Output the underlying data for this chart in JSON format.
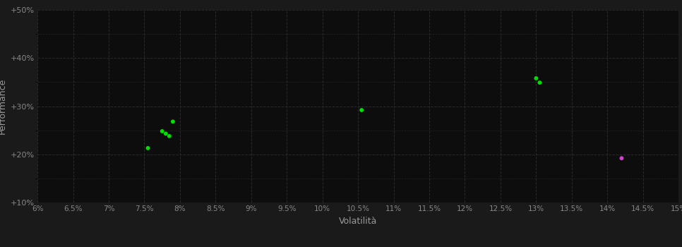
{
  "background_color": "#1a1a1a",
  "plot_bg_color": "#0d0d0d",
  "grid_color": "#2a2a2a",
  "grid_style": "--",
  "xlabel": "Volatilità",
  "ylabel": "Performance",
  "xlabel_color": "#999999",
  "ylabel_color": "#999999",
  "tick_color": "#888888",
  "xlim": [
    0.06,
    0.15
  ],
  "ylim": [
    0.1,
    0.5
  ],
  "xticks": [
    0.06,
    0.065,
    0.07,
    0.075,
    0.08,
    0.085,
    0.09,
    0.095,
    0.1,
    0.105,
    0.11,
    0.115,
    0.12,
    0.125,
    0.13,
    0.135,
    0.14,
    0.145,
    0.15
  ],
  "xtick_labels": [
    "6%",
    "6.5%",
    "7%",
    "7.5%",
    "8%",
    "8.5%",
    "9%",
    "9.5%",
    "10%",
    "10.5%",
    "11%",
    "11.5%",
    "12%",
    "12.5%",
    "13%",
    "13.5%",
    "14%",
    "14.5%",
    "15%"
  ],
  "yticks": [
    0.1,
    0.2,
    0.3,
    0.4,
    0.5
  ],
  "ytick_labels": [
    "+10%",
    "+20%",
    "+30%",
    "+40%",
    "+50%"
  ],
  "green_points": [
    [
      0.0755,
      0.213
    ],
    [
      0.0775,
      0.248
    ],
    [
      0.078,
      0.243
    ],
    [
      0.0785,
      0.238
    ],
    [
      0.079,
      0.268
    ],
    [
      0.1055,
      0.292
    ],
    [
      0.13,
      0.358
    ],
    [
      0.1305,
      0.349
    ]
  ],
  "magenta_points": [
    [
      0.142,
      0.192
    ]
  ],
  "green_color": "#00dd00",
  "magenta_color": "#cc44cc",
  "marker_size": 18
}
